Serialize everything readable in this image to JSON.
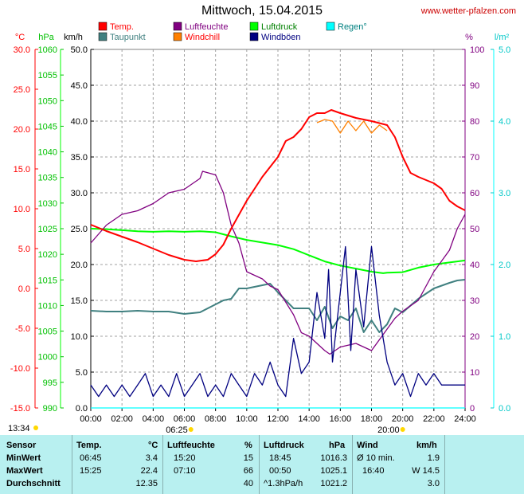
{
  "title": "Mittwoch, 15.04.2015",
  "site": "www.wetter-pfalzen.com",
  "legend": [
    {
      "label": "Temp.",
      "color": "#ff0000"
    },
    {
      "label": "Taupunkt",
      "color": "#408080"
    },
    {
      "label": "Luftfeuchte",
      "color": "#800080"
    },
    {
      "label": "Windchill",
      "color": "#ff8000"
    },
    {
      "label": "Luftdruck",
      "color": "#00ff00"
    },
    {
      "label": "Windböen",
      "color": "#000080"
    },
    {
      "label": "Regen°",
      "color": "#00ffff"
    }
  ],
  "axis_titles": {
    "temp": "°C",
    "pressure": "hPa",
    "wind": "km/h",
    "humidity": "%",
    "rain": "l/m²"
  },
  "sun_times": {
    "sunrise": "06:25",
    "sunset": "20:00",
    "daylength": "13:34"
  },
  "chart_data": {
    "type": "line",
    "x_ticks": [
      "00:00",
      "02:00",
      "04:00",
      "06:00",
      "08:00",
      "10:00",
      "12:00",
      "14:00",
      "16:00",
      "18:00",
      "20:00",
      "22:00",
      "24:00"
    ],
    "axes": {
      "temp_c": {
        "min": -15.0,
        "max": 30.0,
        "ticks": [
          "30.0",
          "25.0",
          "20.0",
          "15.0",
          "10.0",
          "5.0",
          "0.0",
          "-5.0",
          "-10.0",
          "-15.0"
        ]
      },
      "pressure_hpa": {
        "min": 990,
        "max": 1060,
        "ticks": [
          "1060",
          "1055",
          "1050",
          "1045",
          "1040",
          "1035",
          "1030",
          "1025",
          "1020",
          "1015",
          "1010",
          "1005",
          "1000",
          "995",
          "990"
        ]
      },
      "wind_kmh": {
        "min": 0.0,
        "max": 50.0,
        "ticks": [
          "50.0",
          "45.0",
          "40.0",
          "35.0",
          "30.0",
          "25.0",
          "20.0",
          "15.0",
          "10.0",
          "5.0",
          "0.0"
        ]
      },
      "humidity_pct": {
        "min": 0,
        "max": 100,
        "ticks": [
          "100",
          "90",
          "80",
          "70",
          "60",
          "50",
          "40",
          "30",
          "20",
          "10",
          "0"
        ]
      },
      "rain_lm2": {
        "min": 0.0,
        "max": 5.0,
        "ticks": [
          "5.0",
          "4.0",
          "3.0",
          "2.0",
          "1.0",
          "0.0"
        ]
      }
    },
    "grid": true,
    "series": [
      {
        "name": "Temp.",
        "color": "#ff0000",
        "axis": "temp_c",
        "points": [
          [
            0,
            8.0
          ],
          [
            1,
            7.2
          ],
          [
            2,
            6.5
          ],
          [
            3,
            5.8
          ],
          [
            4,
            5.0
          ],
          [
            5,
            4.2
          ],
          [
            6,
            3.6
          ],
          [
            6.75,
            3.4
          ],
          [
            7.5,
            3.6
          ],
          [
            8,
            4.3
          ],
          [
            8.5,
            5.5
          ],
          [
            9,
            7.5
          ],
          [
            10,
            11.0
          ],
          [
            11,
            14.0
          ],
          [
            12,
            16.5
          ],
          [
            12.5,
            18.5
          ],
          [
            13,
            19.0
          ],
          [
            13.5,
            20.0
          ],
          [
            14,
            21.5
          ],
          [
            14.5,
            22.0
          ],
          [
            15,
            22.0
          ],
          [
            15.42,
            22.4
          ],
          [
            16,
            22.0
          ],
          [
            17,
            21.4
          ],
          [
            18,
            21.0
          ],
          [
            19,
            20.5
          ],
          [
            19.5,
            19.0
          ],
          [
            20,
            16.5
          ],
          [
            20.5,
            14.5
          ],
          [
            21,
            14.0
          ],
          [
            22,
            13.2
          ],
          [
            22.5,
            12.5
          ],
          [
            23,
            11.0
          ],
          [
            23.5,
            10.3
          ],
          [
            24,
            9.8
          ]
        ]
      },
      {
        "name": "Windchill",
        "color": "#ff8000",
        "axis": "temp_c",
        "points": [
          [
            14.5,
            20.8
          ],
          [
            15,
            21.2
          ],
          [
            15.5,
            21.0
          ],
          [
            16,
            19.5
          ],
          [
            16.5,
            21.0
          ],
          [
            17,
            19.8
          ],
          [
            17.5,
            21.0
          ],
          [
            18,
            19.5
          ],
          [
            18.5,
            20.5
          ],
          [
            19,
            19.8
          ]
        ]
      },
      {
        "name": "Taupunkt",
        "color": "#408080",
        "axis": "temp_c",
        "points": [
          [
            0,
            -2.8
          ],
          [
            1,
            -2.9
          ],
          [
            2,
            -2.9
          ],
          [
            3,
            -2.8
          ],
          [
            4,
            -2.9
          ],
          [
            5,
            -2.9
          ],
          [
            6,
            -3.2
          ],
          [
            7,
            -3.0
          ],
          [
            8,
            -2.0
          ],
          [
            8.5,
            -1.5
          ],
          [
            9,
            -1.3
          ],
          [
            9.5,
            0.0
          ],
          [
            10,
            0.0
          ],
          [
            11,
            0.4
          ],
          [
            11.5,
            0.6
          ],
          [
            12,
            -0.5
          ],
          [
            12.5,
            -1.5
          ],
          [
            13,
            -2.5
          ],
          [
            14,
            -2.5
          ],
          [
            14.5,
            -4.0
          ],
          [
            15,
            -2.3
          ],
          [
            15.5,
            -5.0
          ],
          [
            16,
            -3.5
          ],
          [
            16.5,
            -4.0
          ],
          [
            17,
            -2.5
          ],
          [
            17.5,
            -5.5
          ],
          [
            18,
            -4.0
          ],
          [
            18.5,
            -5.5
          ],
          [
            19,
            -4.5
          ],
          [
            19.5,
            -2.5
          ],
          [
            20,
            -3.0
          ],
          [
            21,
            -1.3
          ],
          [
            22,
            0.0
          ],
          [
            23,
            0.7
          ],
          [
            23.5,
            1.0
          ],
          [
            24,
            1.1
          ]
        ]
      },
      {
        "name": "Luftfeuchte",
        "color": "#800080",
        "axis": "humidity_pct",
        "points": [
          [
            0,
            46
          ],
          [
            1,
            51
          ],
          [
            2,
            54
          ],
          [
            3,
            55
          ],
          [
            4,
            57
          ],
          [
            5,
            60
          ],
          [
            6,
            61
          ],
          [
            7,
            64
          ],
          [
            7.17,
            66
          ],
          [
            8,
            65
          ],
          [
            8.5,
            60
          ],
          [
            9,
            51
          ],
          [
            9.5,
            46
          ],
          [
            10,
            38
          ],
          [
            11,
            36
          ],
          [
            11.5,
            34
          ],
          [
            12,
            33
          ],
          [
            13,
            26
          ],
          [
            13.5,
            21
          ],
          [
            14,
            20
          ],
          [
            14.5,
            18
          ],
          [
            15,
            16
          ],
          [
            15.33,
            15
          ],
          [
            16,
            17
          ],
          [
            17,
            18
          ],
          [
            17.5,
            17
          ],
          [
            18,
            16
          ],
          [
            18.5,
            19
          ],
          [
            19,
            22
          ],
          [
            19.5,
            25
          ],
          [
            20,
            27
          ],
          [
            21,
            30
          ],
          [
            22,
            38
          ],
          [
            23,
            44
          ],
          [
            23.5,
            50
          ],
          [
            24,
            54
          ]
        ]
      },
      {
        "name": "Luftdruck",
        "color": "#00ff00",
        "axis": "pressure_hpa",
        "points": [
          [
            0,
            1025.0
          ],
          [
            1,
            1024.9
          ],
          [
            2,
            1024.7
          ],
          [
            3,
            1024.5
          ],
          [
            4,
            1024.4
          ],
          [
            5,
            1024.5
          ],
          [
            6,
            1024.4
          ],
          [
            7,
            1024.5
          ],
          [
            8,
            1024.3
          ],
          [
            9,
            1023.5
          ],
          [
            10,
            1022.8
          ],
          [
            11,
            1022.3
          ],
          [
            12,
            1021.8
          ],
          [
            13,
            1021.0
          ],
          [
            14,
            1019.8
          ],
          [
            15,
            1018.6
          ],
          [
            16,
            1017.8
          ],
          [
            17,
            1017.2
          ],
          [
            18,
            1016.6
          ],
          [
            18.75,
            1016.3
          ],
          [
            19,
            1016.4
          ],
          [
            20,
            1016.5
          ],
          [
            21,
            1017.4
          ],
          [
            22,
            1018.0
          ],
          [
            23,
            1018.4
          ],
          [
            24,
            1018.8
          ]
        ]
      },
      {
        "name": "Windböen",
        "color": "#000080",
        "axis": "wind_kmh",
        "points": [
          [
            0,
            3.2
          ],
          [
            0.5,
            1.6
          ],
          [
            1,
            3.2
          ],
          [
            1.5,
            1.6
          ],
          [
            2,
            3.2
          ],
          [
            2.5,
            1.6
          ],
          [
            3,
            3.2
          ],
          [
            3.5,
            4.8
          ],
          [
            4,
            1.6
          ],
          [
            4.5,
            3.2
          ],
          [
            5,
            1.6
          ],
          [
            5.5,
            4.8
          ],
          [
            6,
            1.6
          ],
          [
            6.5,
            3.2
          ],
          [
            7,
            4.8
          ],
          [
            7.5,
            1.6
          ],
          [
            8,
            3.2
          ],
          [
            8.5,
            1.6
          ],
          [
            9,
            4.8
          ],
          [
            9.5,
            3.2
          ],
          [
            10,
            1.6
          ],
          [
            10.5,
            4.8
          ],
          [
            11,
            3.2
          ],
          [
            11.5,
            6.4
          ],
          [
            12,
            3.2
          ],
          [
            12.5,
            1.6
          ],
          [
            13,
            9.7
          ],
          [
            13.5,
            4.8
          ],
          [
            14,
            6.4
          ],
          [
            14.5,
            16.1
          ],
          [
            15,
            9.7
          ],
          [
            15.25,
            19.3
          ],
          [
            15.5,
            6.4
          ],
          [
            16,
            16.1
          ],
          [
            16.33,
            22.5
          ],
          [
            16.67,
            8.0
          ],
          [
            17,
            19.3
          ],
          [
            17.5,
            11.3
          ],
          [
            18,
            22.5
          ],
          [
            18.5,
            12.9
          ],
          [
            19,
            6.4
          ],
          [
            19.5,
            3.2
          ],
          [
            20,
            4.8
          ],
          [
            20.5,
            1.6
          ],
          [
            21,
            4.8
          ],
          [
            21.5,
            3.2
          ],
          [
            22,
            4.8
          ],
          [
            22.5,
            3.2
          ],
          [
            23,
            3.2
          ],
          [
            24,
            3.2
          ]
        ]
      },
      {
        "name": "Regen°",
        "color": "#00ffff",
        "axis": "rain_lm2",
        "points": [
          [
            0,
            0
          ],
          [
            24,
            0
          ]
        ]
      }
    ]
  },
  "stats": {
    "headers": {
      "sensor": "Sensor",
      "temp": "Temp.",
      "temp_unit": "°C",
      "hum": "Luftfeuchte",
      "hum_unit": "%",
      "press": "Luftdruck",
      "press_unit": "hPa",
      "wind": "Wind",
      "wind_unit": "km/h"
    },
    "rows": [
      {
        "label": "MinWert",
        "t_time": "06:45",
        "t_val": "3.4",
        "h_time": "15:20",
        "h_val": "15",
        "p_time": "18:45",
        "p_val": "1016.3",
        "w_desc": "Ø 10 min.",
        "w_val": "1.9"
      },
      {
        "label": "MaxWert",
        "t_time": "15:25",
        "t_val": "22.4",
        "h_time": "07:10",
        "h_val": "66",
        "p_time": "00:50",
        "p_val": "1025.1",
        "w_desc": "16:40",
        "w_val": "W 14.5"
      },
      {
        "label": "Durchschnitt",
        "t_time": "",
        "t_val": "12.35",
        "h_time": "",
        "h_val": "40",
        "p_time": "^1.3hPa/h",
        "p_val": "1021.2",
        "w_desc": "",
        "w_val": "3.0"
      }
    ]
  }
}
